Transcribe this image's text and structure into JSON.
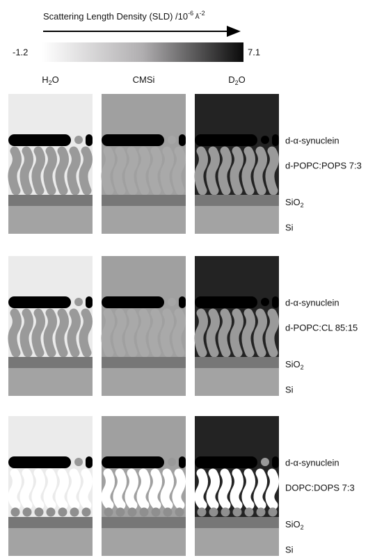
{
  "header": {
    "title": [
      "Scattering Length Density (SLD) /10",
      "-6",
      " Å",
      "-2"
    ],
    "scale_min": -1.2,
    "scale_max": 7.1
  },
  "columns": [
    [
      "H",
      "2",
      "O"
    ],
    [
      "CMSi"
    ],
    [
      "D",
      "2",
      "O"
    ]
  ],
  "rows": [
    {
      "protein": "d-α-synuclein",
      "lipid": "d-POPC:POPS 7:3",
      "oxide": [
        "SiO",
        "2"
      ],
      "substrate": "Si"
    },
    {
      "protein": "d-α-synuclein",
      "lipid": "d-POPC:CL 85:15",
      "oxide": [
        "SiO",
        "2"
      ],
      "substrate": "Si"
    },
    {
      "protein": "d-α-synuclein",
      "lipid": "DOPC:DOPS 7:3",
      "oxide": [
        "SiO",
        "2"
      ],
      "substrate": "Si"
    }
  ]
}
